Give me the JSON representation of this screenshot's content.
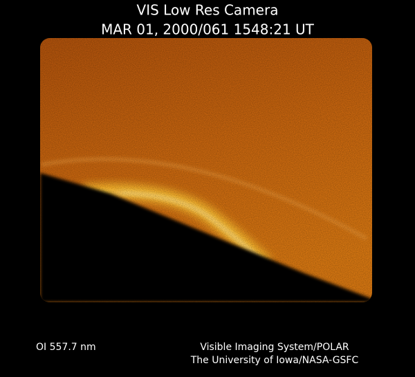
{
  "header": {
    "title": "VIS Low Res Camera",
    "timestamp": "MAR 01, 2000/061 1548:21 UT"
  },
  "footer": {
    "filter": "OI 557.7 nm",
    "credit_lines": [
      "Visible Imaging System/POLAR",
      "The University of Iowa/NASA-GSFC"
    ]
  }
}
